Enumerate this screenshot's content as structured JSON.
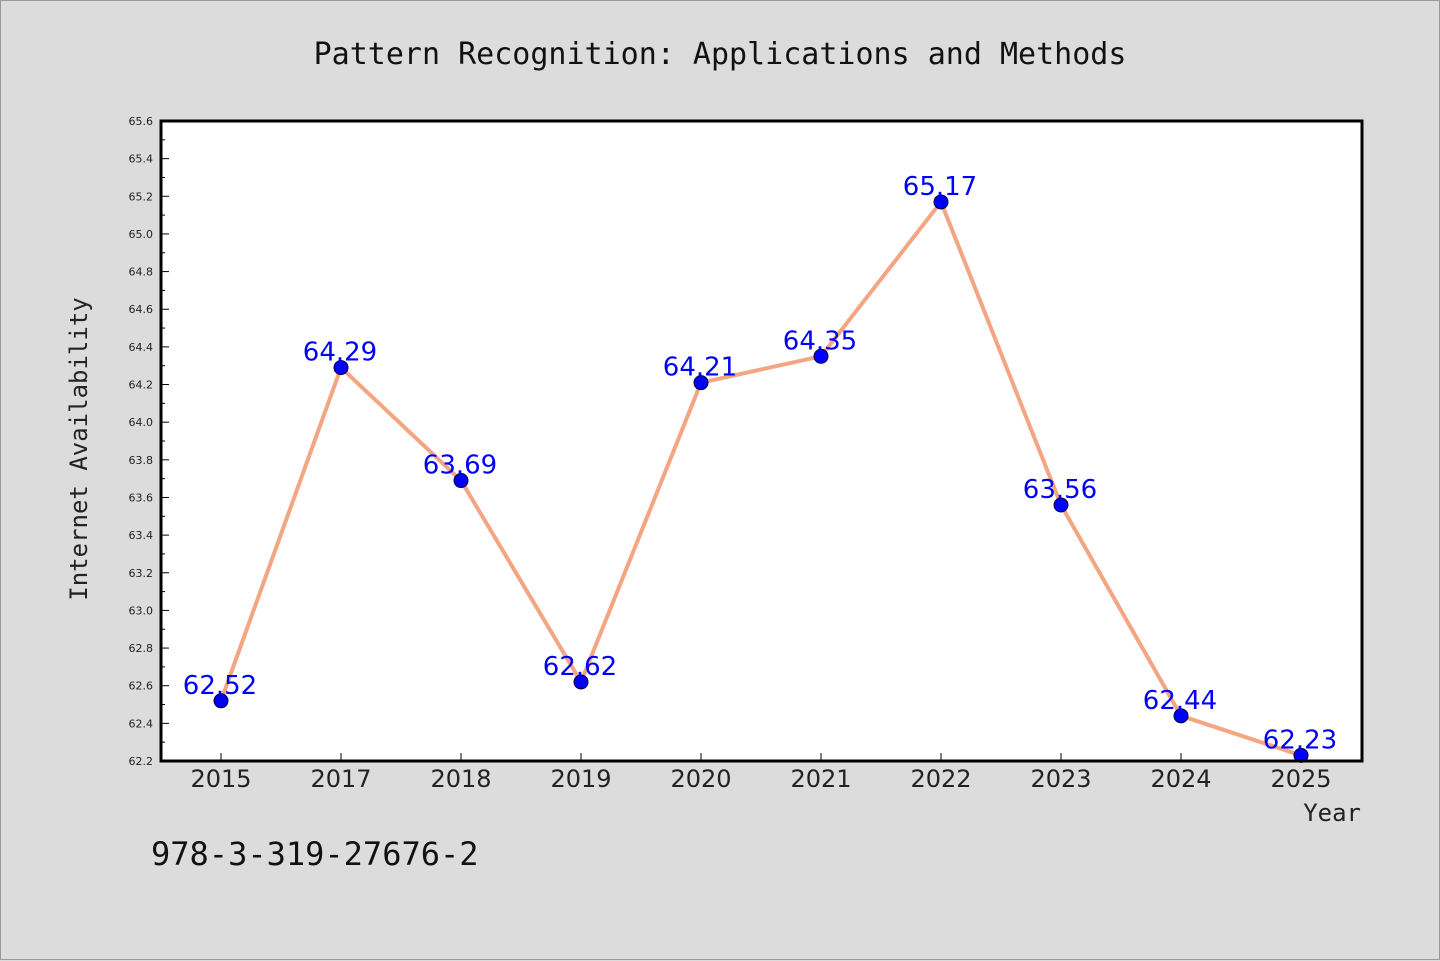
{
  "chart_data": {
    "type": "line",
    "title": "Pattern Recognition: Applications and Methods",
    "xlabel": "Year",
    "ylabel": "Internet Availability",
    "categories": [
      "2015",
      "2017",
      "2018",
      "2019",
      "2020",
      "2021",
      "2022",
      "2023",
      "2024",
      "2025"
    ],
    "values": [
      62.52,
      64.29,
      63.69,
      62.62,
      64.21,
      64.35,
      65.17,
      63.56,
      62.44,
      62.23
    ],
    "data_labels": [
      "62.52",
      "64.29",
      "63.69",
      "62.62",
      "64.21",
      "64.35",
      "65.17",
      "63.56",
      "62.44",
      "62.23"
    ],
    "ylim": [
      62.2,
      65.6
    ],
    "y_ticks": [
      "62.2",
      "62.4",
      "62.6",
      "62.8",
      "63.0",
      "63.2",
      "63.4",
      "63.6",
      "63.8",
      "64.0",
      "64.2",
      "64.4",
      "64.6",
      "64.8",
      "65.0",
      "65.2",
      "65.4",
      "65.6"
    ],
    "grid": false,
    "legend": "none",
    "line_color": "#f4a582",
    "marker_color": "#0000ff",
    "label_color": "#0000ff"
  },
  "footer": {
    "isbn": "978-3-319-27676-2"
  }
}
